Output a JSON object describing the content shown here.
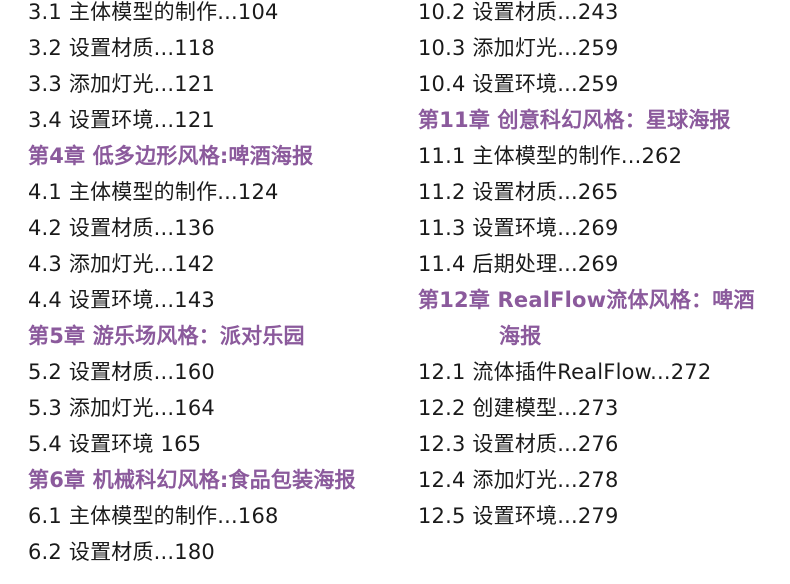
{
  "colors": {
    "chapter": "#8b5a9c",
    "text": "#1a1a1a"
  },
  "left": [
    {
      "text": "3.1 主体模型的制作...104",
      "type": "section"
    },
    {
      "text": "3.2 设置材质...118",
      "type": "section"
    },
    {
      "text": "3.3 添加灯光...121",
      "type": "section"
    },
    {
      "text": "3.4 设置环境...121",
      "type": "section"
    },
    {
      "text": "第4章 低多边形风格:啤酒海报",
      "type": "chapter"
    },
    {
      "text": "4.1 主体模型的制作...124",
      "type": "section"
    },
    {
      "text": "4.2 设置材质...136",
      "type": "section"
    },
    {
      "text": "4.3 添加灯光...142",
      "type": "section"
    },
    {
      "text": "4.4 设置环境...143",
      "type": "section"
    },
    {
      "text": "第5章 游乐场风格：派对乐园",
      "type": "chapter"
    },
    {
      "text": "5.2 设置材质...160",
      "type": "section"
    },
    {
      "text": "5.3 添加灯光...164",
      "type": "section"
    },
    {
      "text": "5.4 设置环境 165",
      "type": "section"
    },
    {
      "text": "第6章 机械科幻风格:食品包装海报",
      "type": "chapter"
    },
    {
      "text": "6.1 主体模型的制作...168",
      "type": "section"
    },
    {
      "text": "6.2 设置材质...180",
      "type": "section"
    }
  ],
  "right": [
    {
      "text": "10.2 设置材质...243",
      "type": "section"
    },
    {
      "text": "10.3 添加灯光...259",
      "type": "section"
    },
    {
      "text": "10.4 设置环境...259",
      "type": "section"
    },
    {
      "text": "第11章 创意科幻风格：星球海报",
      "type": "chapter"
    },
    {
      "text": "11.1 主体模型的制作...262",
      "type": "section"
    },
    {
      "text": "11.2 设置材质...265",
      "type": "section"
    },
    {
      "text": "11.3 设置环境...269",
      "type": "section"
    },
    {
      "text": "11.4 后期处理...269",
      "type": "section"
    },
    {
      "text": "第12章 RealFlow流体风格：啤酒\n海报",
      "type": "chapter"
    },
    {
      "text": "12.1 流体插件RealFlow...272",
      "type": "section"
    },
    {
      "text": "12.2 创建模型...273",
      "type": "section"
    },
    {
      "text": "12.3 设置材质...276",
      "type": "section"
    },
    {
      "text": "12.4 添加灯光...278",
      "type": "section"
    },
    {
      "text": "12.5 设置环境...279",
      "type": "section"
    }
  ]
}
